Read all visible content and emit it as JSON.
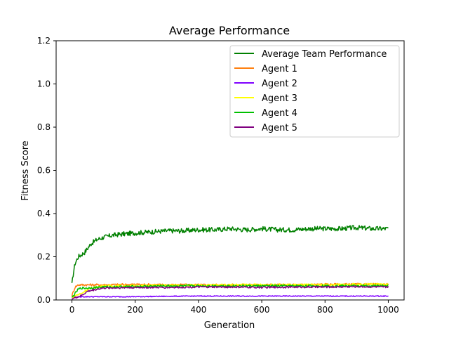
{
  "chart_data": {
    "type": "line",
    "title": "Average Performance",
    "xlabel": "Generation",
    "ylabel": "Fitness Score",
    "xlim": [
      -50,
      1050
    ],
    "ylim": [
      0,
      1.2
    ],
    "xticks": [
      0,
      200,
      400,
      600,
      800,
      1000
    ],
    "yticks": [
      0.0,
      0.2,
      0.4,
      0.6,
      0.8,
      1.0,
      1.2
    ],
    "xtick_labels": [
      "0",
      "200",
      "400",
      "600",
      "800",
      "1000"
    ],
    "ytick_labels": [
      "0.0",
      "0.2",
      "0.4",
      "0.6",
      "0.8",
      "1.0",
      "1.2"
    ],
    "grid": false,
    "legend_position": "top-right",
    "series": [
      {
        "name": "Average Team Performance",
        "color": "#008000",
        "x": [
          0,
          5,
          10,
          20,
          30,
          40,
          50,
          60,
          80,
          100,
          130,
          160,
          200,
          250,
          300,
          350,
          400,
          450,
          500,
          550,
          600,
          650,
          700,
          750,
          800,
          850,
          900,
          950,
          1000
        ],
        "values": [
          0.07,
          0.13,
          0.17,
          0.2,
          0.21,
          0.22,
          0.24,
          0.26,
          0.28,
          0.29,
          0.3,
          0.305,
          0.31,
          0.315,
          0.32,
          0.32,
          0.325,
          0.325,
          0.33,
          0.325,
          0.33,
          0.325,
          0.325,
          0.33,
          0.33,
          0.33,
          0.335,
          0.33,
          0.33
        ]
      },
      {
        "name": "Agent 1",
        "color": "#ff7f0e",
        "x": [
          0,
          5,
          10,
          20,
          30,
          50,
          100,
          200,
          300,
          400,
          500,
          600,
          700,
          800,
          900,
          1000
        ],
        "values": [
          0.02,
          0.04,
          0.06,
          0.07,
          0.07,
          0.07,
          0.07,
          0.072,
          0.07,
          0.07,
          0.07,
          0.07,
          0.07,
          0.072,
          0.072,
          0.072
        ]
      },
      {
        "name": "Agent 2",
        "color": "#8000ff",
        "x": [
          0,
          10,
          30,
          50,
          100,
          200,
          300,
          400,
          500,
          600,
          700,
          800,
          900,
          1000
        ],
        "values": [
          0.01,
          0.012,
          0.015,
          0.015,
          0.015,
          0.015,
          0.017,
          0.018,
          0.018,
          0.018,
          0.018,
          0.018,
          0.018,
          0.018
        ]
      },
      {
        "name": "Agent 3",
        "color": "#ffff00",
        "x": [
          0,
          10,
          30,
          50,
          80,
          100,
          200,
          300,
          400,
          500,
          600,
          700,
          800,
          900,
          1000
        ],
        "values": [
          0.01,
          0.02,
          0.03,
          0.05,
          0.06,
          0.065,
          0.065,
          0.068,
          0.068,
          0.07,
          0.07,
          0.07,
          0.07,
          0.072,
          0.072
        ]
      },
      {
        "name": "Agent 4",
        "color": "#00c000",
        "x": [
          0,
          10,
          20,
          30,
          50,
          100,
          200,
          300,
          400,
          500,
          600,
          700,
          800,
          900,
          1000
        ],
        "values": [
          0.01,
          0.03,
          0.05,
          0.055,
          0.055,
          0.06,
          0.062,
          0.065,
          0.065,
          0.065,
          0.065,
          0.065,
          0.065,
          0.065,
          0.065
        ]
      },
      {
        "name": "Agent 5",
        "color": "#800080",
        "x": [
          0,
          10,
          30,
          50,
          80,
          100,
          200,
          300,
          400,
          500,
          600,
          700,
          800,
          900,
          1000
        ],
        "values": [
          0.005,
          0.01,
          0.02,
          0.04,
          0.05,
          0.055,
          0.058,
          0.058,
          0.06,
          0.06,
          0.058,
          0.06,
          0.06,
          0.062,
          0.06
        ]
      }
    ]
  }
}
